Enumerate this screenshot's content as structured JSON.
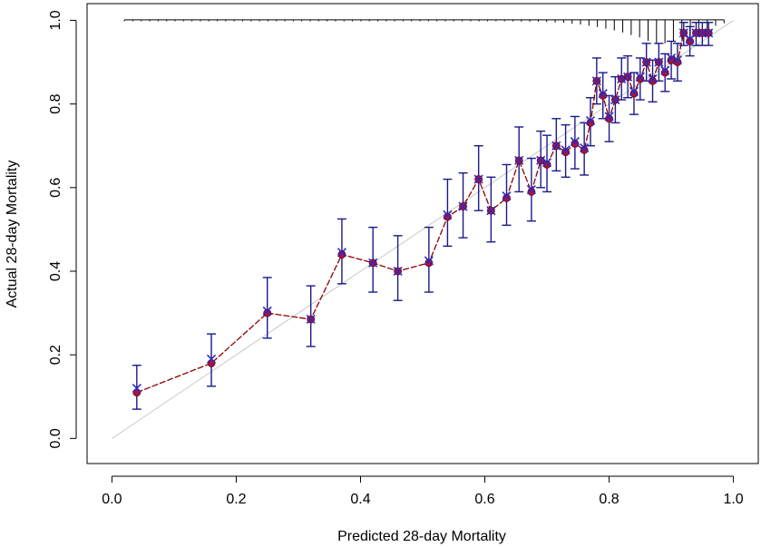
{
  "chart_data": {
    "type": "scatter",
    "title": "",
    "xlabel": "Predicted 28-day Mortality",
    "ylabel": "Actual 28-day Mortality",
    "xlim": [
      -0.04,
      1.04
    ],
    "ylim": [
      -0.06,
      1.04
    ],
    "x_ticks": [
      0.0,
      0.2,
      0.4,
      0.6,
      0.8,
      1.0
    ],
    "x_tick_labels": [
      "0.0",
      "0.2",
      "0.4",
      "0.6",
      "0.8",
      "1.0"
    ],
    "y_ticks": [
      0.0,
      0.2,
      0.4,
      0.6,
      0.8,
      1.0
    ],
    "y_tick_labels": [
      "0.0",
      "0.2",
      "0.4",
      "0.6",
      "0.8",
      "1.0"
    ],
    "grid": false,
    "reference_line": {
      "name": "ideal",
      "x": [
        0,
        1
      ],
      "y": [
        0,
        1
      ],
      "color": "#c8c8c8"
    },
    "colors": {
      "line": "#8b0000",
      "point_fill": "#b0103a",
      "cross": "#2b2bc0",
      "error_bar": "#1a1a8c",
      "rug": "#000000"
    },
    "series": [
      {
        "name": "observed",
        "x": [
          0.04,
          0.16,
          0.25,
          0.32,
          0.37,
          0.42,
          0.46,
          0.51,
          0.54,
          0.565,
          0.59,
          0.61,
          0.635,
          0.655,
          0.675,
          0.69,
          0.7,
          0.715,
          0.73,
          0.745,
          0.76,
          0.77,
          0.78,
          0.79,
          0.8,
          0.81,
          0.82,
          0.83,
          0.84,
          0.85,
          0.86,
          0.87,
          0.88,
          0.89,
          0.9,
          0.91,
          0.92,
          0.93,
          0.94,
          0.95,
          0.96
        ],
        "y": [
          0.11,
          0.18,
          0.3,
          0.285,
          0.44,
          0.42,
          0.4,
          0.42,
          0.53,
          0.555,
          0.62,
          0.545,
          0.575,
          0.665,
          0.59,
          0.665,
          0.655,
          0.7,
          0.685,
          0.705,
          0.69,
          0.755,
          0.855,
          0.82,
          0.765,
          0.81,
          0.86,
          0.865,
          0.825,
          0.86,
          0.9,
          0.855,
          0.9,
          0.875,
          0.905,
          0.9,
          0.97,
          0.95,
          0.97,
          0.97,
          0.97
        ],
        "cross": [
          0.12,
          0.19,
          0.305,
          0.285,
          0.445,
          0.42,
          0.4,
          0.425,
          0.535,
          0.555,
          0.62,
          0.545,
          0.58,
          0.665,
          0.595,
          0.665,
          0.66,
          0.7,
          0.69,
          0.71,
          0.695,
          0.76,
          0.855,
          0.825,
          0.77,
          0.81,
          0.86,
          0.865,
          0.83,
          0.865,
          0.9,
          0.86,
          0.9,
          0.88,
          0.91,
          0.905,
          0.97,
          0.955,
          0.97,
          0.97,
          0.97
        ],
        "lower": [
          0.07,
          0.125,
          0.24,
          0.22,
          0.37,
          0.35,
          0.33,
          0.35,
          0.46,
          0.48,
          0.545,
          0.47,
          0.51,
          0.59,
          0.52,
          0.6,
          0.59,
          0.64,
          0.625,
          0.645,
          0.63,
          0.7,
          0.8,
          0.765,
          0.71,
          0.755,
          0.81,
          0.815,
          0.775,
          0.81,
          0.855,
          0.805,
          0.855,
          0.83,
          0.86,
          0.855,
          0.94,
          0.915,
          0.94,
          0.94,
          0.94
        ],
        "upper": [
          0.175,
          0.25,
          0.385,
          0.365,
          0.525,
          0.505,
          0.485,
          0.505,
          0.62,
          0.635,
          0.7,
          0.625,
          0.655,
          0.745,
          0.67,
          0.735,
          0.725,
          0.765,
          0.75,
          0.77,
          0.755,
          0.815,
          0.91,
          0.875,
          0.82,
          0.865,
          0.91,
          0.915,
          0.875,
          0.91,
          0.945,
          0.905,
          0.945,
          0.92,
          0.95,
          0.945,
          0.995,
          0.985,
          0.995,
          0.995,
          0.995
        ]
      }
    ],
    "rug_heights": [
      0.002,
      0.002,
      0.002,
      0.002,
      0.002,
      0.002,
      0.002,
      0.002,
      0.002,
      0.002,
      0.002,
      0.002,
      0.002,
      0.002,
      0.002,
      0.002,
      0.002,
      0.002,
      0.002,
      0.002,
      0.002,
      0.002,
      0.002,
      0.002,
      0.002,
      0.002,
      0.002,
      0.002,
      0.002,
      0.002,
      0.002,
      0.002,
      0.002,
      0.002,
      0.002,
      0.002,
      0.002,
      0.002,
      0.002,
      0.002,
      0.003,
      0.003,
      0.003,
      0.003,
      0.003,
      0.003,
      0.003,
      0.004,
      0.004,
      0.004,
      0.005,
      0.006,
      0.007,
      0.009,
      0.011,
      0.014,
      0.017,
      0.021,
      0.025,
      0.03,
      0.036,
      0.042,
      0.05,
      0.058,
      0.056,
      0.052,
      0.046,
      0.04,
      0.032,
      0.022,
      0.014,
      0.008
    ],
    "rug_x_start": 0.02,
    "rug_x_end": 0.985
  }
}
